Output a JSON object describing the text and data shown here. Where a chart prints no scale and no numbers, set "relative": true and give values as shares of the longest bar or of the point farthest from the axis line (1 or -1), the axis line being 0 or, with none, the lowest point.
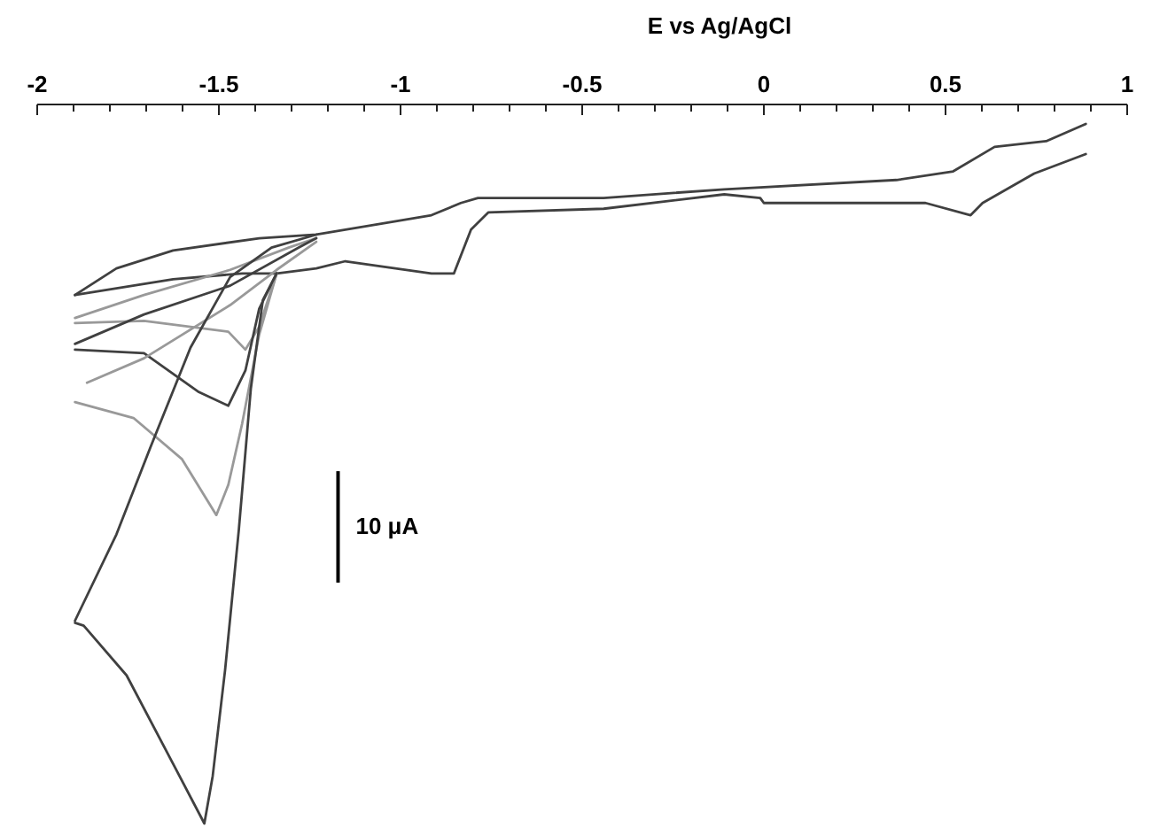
{
  "chart_data": {
    "type": "line",
    "xlabel": "E vs Ag/AgCl",
    "relative": true,
    "xlim": [
      -2,
      1
    ],
    "xticks": [
      -2,
      {
        "value": -1.9,
        "label": null
      },
      {
        "value": -1.8,
        "label": null
      },
      {
        "value": -1.7,
        "label": null
      },
      {
        "value": -1.6,
        "label": null
      },
      -1.5,
      {
        "value": -1.4,
        "label": null
      },
      {
        "value": -1.3,
        "label": null
      },
      {
        "value": -1.2,
        "label": null
      },
      {
        "value": -1.1,
        "label": null
      },
      -1,
      {
        "value": -0.9,
        "label": null
      },
      {
        "value": -0.8,
        "label": null
      },
      {
        "value": -0.7,
        "label": null
      },
      {
        "value": -0.6,
        "label": null
      },
      -0.5,
      {
        "value": -0.4,
        "label": null
      },
      {
        "value": -0.3,
        "label": null
      },
      {
        "value": -0.2,
        "label": null
      },
      {
        "value": -0.1,
        "label": null
      },
      0,
      {
        "value": 0.1,
        "label": null
      },
      {
        "value": 0.2,
        "label": null
      },
      {
        "value": 0.3,
        "label": null
      },
      {
        "value": 0.4,
        "label": null
      },
      0.5,
      {
        "value": 0.6,
        "label": null
      },
      {
        "value": 0.7,
        "label": null
      },
      {
        "value": 0.8,
        "label": null
      },
      {
        "value": 0.9,
        "label": null
      },
      1
    ],
    "annotations": [
      "10 μA"
    ],
    "marker": "none",
    "line_style": "solid",
    "series": [
      {
        "color": "#404040",
        "x": [
          -1.896,
          -1.782,
          -1.626,
          -1.389,
          -1.232,
          -0.915,
          -0.834,
          -0.787,
          -0.441,
          -0.109,
          0.365,
          0.521,
          0.635,
          0.777,
          0.886
        ],
        "values": [
          -0.265,
          -0.228,
          -0.203,
          -0.186,
          -0.181,
          -0.154,
          -0.137,
          -0.13,
          -0.13,
          -0.118,
          -0.105,
          -0.093,
          -0.059,
          -0.051,
          -0.027
        ]
      },
      {
        "color": "#404040",
        "x": [
          0.886,
          0.744,
          0.602,
          0.569,
          0.445,
          0.0,
          -0.01,
          -0.109,
          -0.441,
          -0.758,
          -0.806,
          -0.853,
          -0.915,
          -1.152,
          -1.232,
          -1.341,
          -1.436,
          -1.626,
          -1.896
        ],
        "values": [
          -0.069,
          -0.096,
          -0.137,
          -0.154,
          -0.137,
          -0.137,
          -0.13,
          -0.125,
          -0.145,
          -0.15,
          -0.174,
          -0.235,
          -0.235,
          -0.218,
          -0.228,
          -0.235,
          -0.235,
          -0.243,
          -0.265
        ]
      },
      {
        "color": "#999999",
        "x": [
          -1.341,
          -1.389,
          -1.427,
          -1.474,
          -1.706,
          -1.896
        ],
        "values": [
          -0.235,
          -0.309,
          -0.341,
          -0.316,
          -0.301,
          -0.304
        ]
      },
      {
        "color": "#999999",
        "x": [
          -1.896,
          -1.706,
          -1.469,
          -1.308,
          -1.232
        ],
        "values": [
          -0.297,
          -0.265,
          -0.23,
          -0.199,
          -0.186
        ]
      },
      {
        "color": "#404040",
        "x": [
          -1.341,
          -1.389,
          -1.427,
          -1.474,
          -1.555,
          -1.706,
          -1.896
        ],
        "values": [
          -0.235,
          -0.284,
          -0.37,
          -0.419,
          -0.4,
          -0.346,
          -0.341
        ]
      },
      {
        "color": "#404040",
        "x": [
          -1.896,
          -1.706,
          -1.469,
          -1.28,
          -1.232
        ],
        "values": [
          -0.333,
          -0.292,
          -0.252,
          -0.199,
          -0.186
        ]
      },
      {
        "color": "#999999",
        "x": [
          -1.341,
          -1.389,
          -1.436,
          -1.474,
          -1.507,
          -1.602,
          -1.735,
          -1.896
        ],
        "values": [
          -0.235,
          -0.32,
          -0.444,
          -0.529,
          -0.571,
          -0.493,
          -0.436,
          -0.414
        ]
      },
      {
        "color": "#999999",
        "x": [
          -1.863,
          -1.706,
          -1.469,
          -1.341,
          -1.232
        ],
        "values": [
          -0.387,
          -0.353,
          -0.279,
          -0.23,
          -0.191
        ]
      },
      {
        "color": "#404040",
        "x": [
          -1.341,
          -1.379,
          -1.412,
          -1.445,
          -1.483,
          -1.517,
          -1.54,
          -1.626,
          -1.754,
          -1.872,
          -1.896
        ],
        "values": [
          -0.235,
          -0.272,
          -0.395,
          -0.591,
          -0.787,
          -0.934,
          -1,
          -0.917,
          -0.794,
          -0.725,
          -0.721
        ]
      },
      {
        "color": "#404040",
        "x": [
          -1.896,
          -1.782,
          -1.687,
          -1.578,
          -1.469,
          -1.355,
          -1.232
        ],
        "values": [
          -0.718,
          -0.598,
          -0.475,
          -0.338,
          -0.24,
          -0.199,
          -0.181
        ]
      }
    ]
  }
}
